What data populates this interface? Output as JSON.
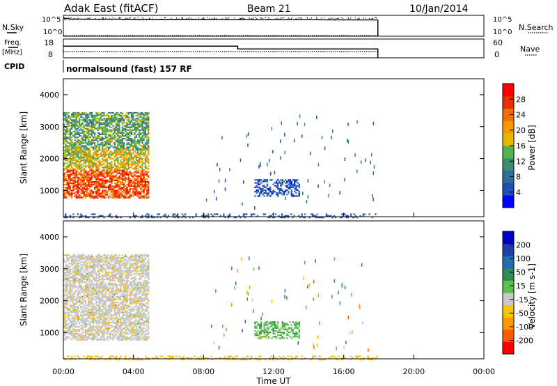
{
  "header": {
    "station": "Adak East (fitACF)",
    "beam": "Beam 21",
    "date": "10/Jan/2014"
  },
  "nsky_panel": {
    "left_label": "N.Sky",
    "right_label": "N.Search",
    "left_ticks": [
      "10^5",
      "10^0"
    ],
    "right_ticks": [
      "10^5",
      "10^0"
    ]
  },
  "freq_panel": {
    "left_label_line1": "Freq.",
    "left_label_line2": "[MHz]",
    "right_label": "Nave",
    "left_ticks": [
      "18",
      "8"
    ],
    "right_ticks": [
      "60",
      "0"
    ]
  },
  "cpid": {
    "label": "CPID",
    "program": "normalsound (fast) 157 RF"
  },
  "colors": {
    "power_scale": [
      "#0000ff",
      "#1f4fb4",
      "#2e6e9e",
      "#3d8c6a",
      "#55b34f",
      "#e8b800",
      "#f59a00",
      "#f07000",
      "#e83000",
      "#ff0000"
    ],
    "velocity_scale": [
      "#ff0000",
      "#ff5a00",
      "#ff9a00",
      "#f5c500",
      "#c8c8c8",
      "#5cc24a",
      "#2e8b57",
      "#1e6eb0",
      "#1f3fa8",
      "#0000c8"
    ]
  },
  "chart_data": [
    {
      "type": "line",
      "panel": "N.Sky / N.Search",
      "x_unit": "hours UT",
      "x": [
        0,
        0.5,
        1,
        2,
        3,
        4,
        6,
        8,
        10,
        12,
        14,
        16,
        17.95
      ],
      "series": [
        {
          "name": "N.Sky",
          "values_log10": [
            4.3,
            4.1,
            4.1,
            4.05,
            4.1,
            4.0,
            4.0,
            4.0,
            3.95,
            3.95,
            3.95,
            3.9,
            3.9
          ]
        },
        {
          "name": "N.Search",
          "values_log10": [
            0,
            0,
            0,
            0,
            0,
            0,
            0,
            0,
            0,
            0,
            0,
            0,
            0
          ]
        }
      ],
      "ylim_log10": [
        0,
        5
      ]
    },
    {
      "type": "line",
      "panel": "Freq / Nave",
      "x_unit": "hours UT",
      "series": [
        {
          "name": "Freq.",
          "x": [
            0,
            9.95,
            9.95,
            17.95
          ],
          "values": [
            14.2,
            14.2,
            12.7,
            12.7
          ],
          "ylim": [
            8,
            18
          ]
        },
        {
          "name": "Nave",
          "x": [
            0,
            9.95,
            9.95,
            17.95
          ],
          "values": [
            20,
            20,
            20,
            20
          ],
          "ylim": [
            0,
            60
          ]
        }
      ]
    },
    {
      "type": "heatmap",
      "panel": "Power",
      "xlabel": "",
      "ylabel": "Slant Range [km]",
      "x_ticks": [
        "00:00",
        "04:00",
        "08:00",
        "12:00",
        "16:00",
        "20:00",
        "00:00"
      ],
      "xlim_hours": [
        0,
        24
      ],
      "ylim_km": [
        180,
        4500
      ],
      "y_ticks": [
        1000,
        2000,
        3000,
        4000
      ],
      "colorbar_label": "Power [dB]",
      "colorbar_ticks": [
        "28",
        "24",
        "20",
        "16",
        "12",
        "8",
        "4"
      ],
      "colorbar_range": [
        0,
        30
      ],
      "regions": [
        {
          "t0": 0,
          "t1": 4.9,
          "r0": 800,
          "r1": 3500,
          "value_dB": 18,
          "note": "strong scatter, peak 24-28 dB near 1000-1500 km"
        },
        {
          "t0": 0,
          "t1": 1.5,
          "r0": 2000,
          "r1": 2600,
          "value_dB": 14
        },
        {
          "t0": 10.9,
          "t1": 13.5,
          "r0": 850,
          "r1": 1400,
          "value_dB": 5
        },
        {
          "t0": 0,
          "t1": 17.95,
          "r0": 180,
          "r1": 330,
          "value_dB": 6
        }
      ]
    },
    {
      "type": "heatmap",
      "panel": "Velocity",
      "xlabel": "Time UT",
      "ylabel": "Slant Range [km]",
      "x_ticks": [
        "00:00",
        "04:00",
        "08:00",
        "12:00",
        "16:00",
        "20:00",
        "00:00"
      ],
      "xlim_hours": [
        0,
        24
      ],
      "ylim_km": [
        180,
        4500
      ],
      "y_ticks": [
        1000,
        2000,
        3000,
        4000
      ],
      "colorbar_label": "Velocity [m s-1]",
      "colorbar_ticks": [
        "200",
        "100",
        "50",
        "15",
        "-15",
        "-50",
        "-100",
        "-200"
      ],
      "regions": [
        {
          "t0": 0,
          "t1": 4.9,
          "r0": 800,
          "r1": 3500,
          "value_ms": 0,
          "note": "mostly ground scatter (grey) with negative velocities"
        },
        {
          "t0": 10.9,
          "t1": 13.5,
          "r0": 850,
          "r1": 1400,
          "value_ms": 40
        },
        {
          "t0": 0,
          "t1": 17.95,
          "r0": 180,
          "r1": 330,
          "value_ms": -30
        }
      ]
    }
  ]
}
